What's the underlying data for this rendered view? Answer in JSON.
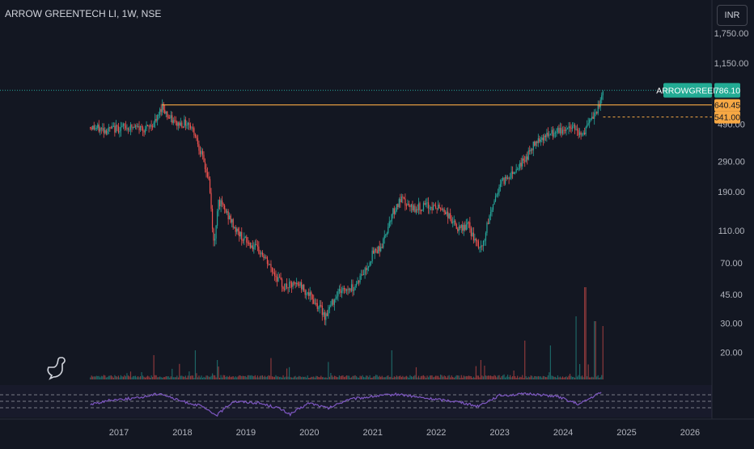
{
  "header": {
    "symbol_title": "ARROW GREENTECH LI, 1W, NSE",
    "currency_button": "INR"
  },
  "colors": {
    "background": "#131722",
    "up": "#26a69a",
    "down": "#ef5350",
    "resistance_line": "#f7a844",
    "rsi_line": "#7e57c2",
    "axis_text": "#b2b5be",
    "price_label_bg": "#22ab94"
  },
  "icons": {
    "logo": "dinosaur-icon"
  },
  "chart_data": [
    {
      "type": "candlestick",
      "title": "ARROW GREENTECH LI, 1W, NSE",
      "y_scale": "log",
      "y_ticks": [
        "1,750.00",
        "1,150.00",
        "490.00",
        "290.00",
        "190.00",
        "110.00",
        "70.00",
        "45.00",
        "30.00",
        "20.00"
      ],
      "y_tick_values": [
        1750,
        1150,
        490,
        290,
        190,
        110,
        70,
        45,
        30,
        20
      ],
      "x_ticks": [
        "2017",
        "2018",
        "2019",
        "2020",
        "2021",
        "2022",
        "2023",
        "2024",
        "2025",
        "2026"
      ],
      "x_tick_values": [
        2017,
        2018,
        2019,
        2020,
        2021,
        2022,
        2023,
        2024,
        2025,
        2026
      ],
      "price_path": [
        [
          2016.55,
          470
        ],
        [
          2016.8,
          450
        ],
        [
          2017.1,
          470
        ],
        [
          2017.45,
          460
        ],
        [
          2017.6,
          520
        ],
        [
          2017.68,
          640
        ],
        [
          2017.78,
          540
        ],
        [
          2017.9,
          490
        ],
        [
          2018.1,
          500
        ],
        [
          2018.2,
          430
        ],
        [
          2018.3,
          320
        ],
        [
          2018.42,
          220
        ],
        [
          2018.5,
          85
        ],
        [
          2018.56,
          170
        ],
        [
          2018.7,
          140
        ],
        [
          2018.85,
          110
        ],
        [
          2019.0,
          95
        ],
        [
          2019.25,
          80
        ],
        [
          2019.45,
          60
        ],
        [
          2019.6,
          50
        ],
        [
          2019.85,
          52
        ],
        [
          2020.2,
          36
        ],
        [
          2020.25,
          33
        ],
        [
          2020.45,
          47
        ],
        [
          2020.7,
          50
        ],
        [
          2020.9,
          65
        ],
        [
          2021.0,
          80
        ],
        [
          2021.15,
          90
        ],
        [
          2021.3,
          140
        ],
        [
          2021.45,
          170
        ],
        [
          2021.6,
          150
        ],
        [
          2021.85,
          155
        ],
        [
          2022.1,
          150
        ],
        [
          2022.2,
          135
        ],
        [
          2022.35,
          110
        ],
        [
          2022.5,
          120
        ],
        [
          2022.62,
          92
        ],
        [
          2022.72,
          85
        ],
        [
          2022.85,
          140
        ],
        [
          2023.0,
          210
        ],
        [
          2023.2,
          250
        ],
        [
          2023.4,
          300
        ],
        [
          2023.6,
          400
        ],
        [
          2023.85,
          430
        ],
        [
          2024.0,
          450
        ],
        [
          2024.2,
          480
        ],
        [
          2024.28,
          410
        ],
        [
          2024.5,
          560
        ],
        [
          2024.58,
          640
        ],
        [
          2024.63,
          786.1
        ]
      ],
      "last_price": {
        "symbol": "ARROWGREEN",
        "value": "786.10"
      },
      "resistance": {
        "value": "640.45",
        "from_x": 2017.68,
        "to_x": 2024.63
      },
      "support_marker": {
        "value": "541.00",
        "from_x": 2024.63
      },
      "volume": {
        "type": "bar",
        "spikes": [
          [
            2017.55,
            0.25
          ],
          [
            2018.2,
            0.3
          ],
          [
            2018.55,
            0.2
          ],
          [
            2019.4,
            0.22
          ],
          [
            2020.3,
            0.18
          ],
          [
            2021.3,
            0.3
          ],
          [
            2022.7,
            0.2
          ],
          [
            2023.4,
            0.4
          ],
          [
            2023.8,
            0.35
          ],
          [
            2024.2,
            0.65
          ],
          [
            2024.35,
            0.95
          ],
          [
            2024.5,
            0.6
          ],
          [
            2024.62,
            0.55
          ]
        ]
      },
      "rsi": {
        "type": "line",
        "levels": [
          70,
          50,
          30
        ],
        "path": [
          [
            2016.55,
            40
          ],
          [
            2016.9,
            55
          ],
          [
            2017.3,
            60
          ],
          [
            2017.65,
            75
          ],
          [
            2017.9,
            55
          ],
          [
            2018.3,
            35
          ],
          [
            2018.45,
            15
          ],
          [
            2018.55,
            8
          ],
          [
            2018.8,
            50
          ],
          [
            2019.2,
            45
          ],
          [
            2019.5,
            30
          ],
          [
            2019.7,
            10
          ],
          [
            2020.0,
            45
          ],
          [
            2020.3,
            28
          ],
          [
            2020.6,
            55
          ],
          [
            2021.0,
            65
          ],
          [
            2021.4,
            72
          ],
          [
            2021.8,
            60
          ],
          [
            2022.3,
            50
          ],
          [
            2022.65,
            35
          ],
          [
            2023.0,
            68
          ],
          [
            2023.5,
            73
          ],
          [
            2023.9,
            65
          ],
          [
            2024.25,
            40
          ],
          [
            2024.6,
            78
          ]
        ]
      }
    }
  ]
}
